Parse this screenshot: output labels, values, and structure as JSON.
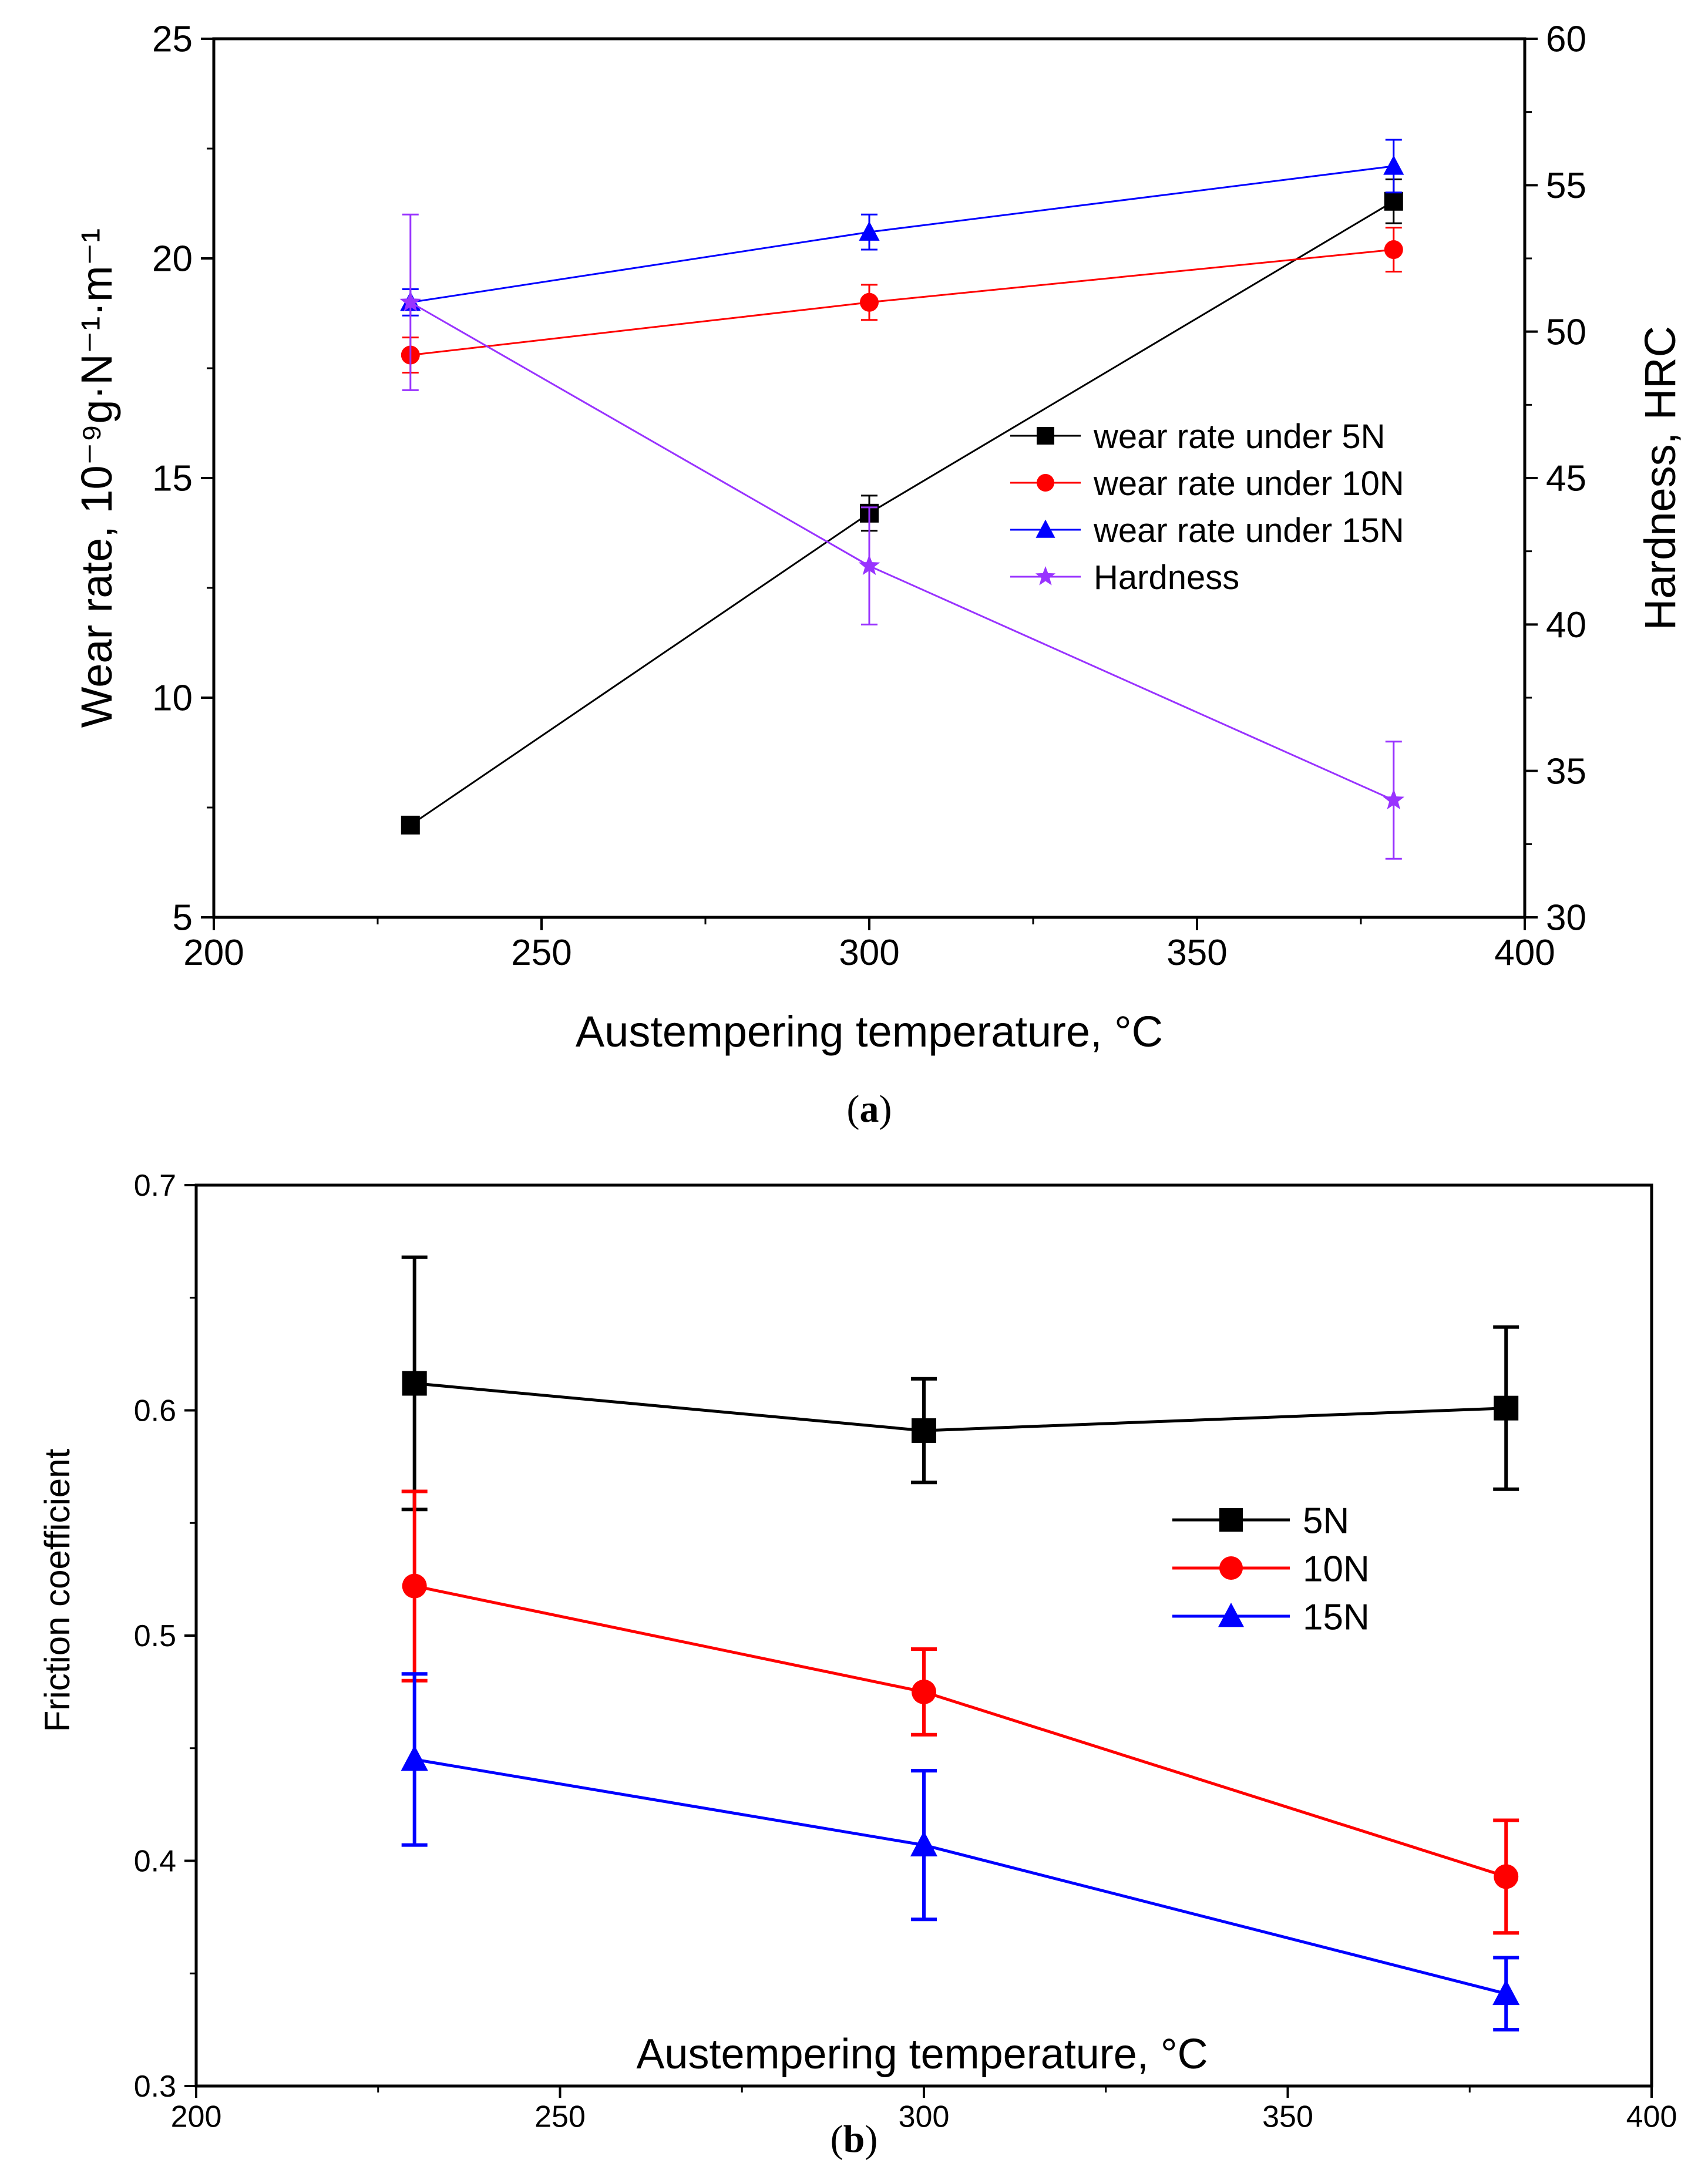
{
  "chart_data": [
    {
      "id": "a",
      "type": "line",
      "caption_label": "a",
      "xlabel": "Austempering temperature, °C",
      "ylabel": "Wear rate, 10⁻⁹g·N⁻¹·m⁻¹",
      "y2label": "Hardness, HRC",
      "xlim": [
        200,
        400
      ],
      "ylim": [
        5,
        25
      ],
      "y2lim": [
        30,
        60
      ],
      "xticks": [
        "200",
        "250",
        "300",
        "350",
        "400"
      ],
      "yticks": [
        "5",
        "10",
        "15",
        "20",
        "25"
      ],
      "y2ticks": [
        "30",
        "35",
        "40",
        "45",
        "50",
        "55",
        "60"
      ],
      "x": [
        230,
        300,
        380
      ],
      "series": [
        {
          "name": "wear rate under 5N",
          "axis": "left",
          "color": "#000000",
          "marker": "square",
          "values": [
            7.1,
            14.2,
            21.3
          ],
          "err": [
            0.15,
            0.4,
            0.5
          ]
        },
        {
          "name": "wear rate under 10N",
          "axis": "left",
          "color": "#ff0000",
          "marker": "circle",
          "values": [
            17.8,
            19.0,
            20.2
          ],
          "err": [
            0.4,
            0.4,
            0.5
          ]
        },
        {
          "name": "wear rate under 15N",
          "axis": "left",
          "color": "#0000ff",
          "marker": "triangle",
          "values": [
            19.0,
            20.6,
            22.1
          ],
          "err": [
            0.3,
            0.4,
            0.6
          ]
        },
        {
          "name": "Hardness",
          "axis": "right",
          "color": "#9933ff",
          "marker": "star",
          "values": [
            51,
            42,
            34
          ],
          "err": [
            3,
            2,
            2
          ]
        }
      ],
      "legend": "center-right"
    },
    {
      "id": "b",
      "type": "line",
      "caption_label": "b",
      "xlabel": "Austempering temperature, °C",
      "ylabel": "Friction coefficient",
      "xlim": [
        200,
        400
      ],
      "ylim": [
        0.3,
        0.7
      ],
      "xticks": [
        "200",
        "250",
        "300",
        "350",
        "400"
      ],
      "yticks": [
        "0.3",
        "0.4",
        "0.5",
        "0.6",
        "0.7"
      ],
      "x": [
        230,
        300,
        380
      ],
      "series": [
        {
          "name": "5N",
          "color": "#000000",
          "marker": "square",
          "values": [
            0.612,
            0.591,
            0.601
          ],
          "err": [
            0.056,
            0.023,
            0.036
          ]
        },
        {
          "name": "10N",
          "color": "#ff0000",
          "marker": "circle",
          "values": [
            0.522,
            0.475,
            0.393
          ],
          "err": [
            0.042,
            0.019,
            0.025
          ]
        },
        {
          "name": "15N",
          "color": "#0000ff",
          "marker": "triangle",
          "values": [
            0.445,
            0.407,
            0.341
          ],
          "err": [
            0.038,
            0.033,
            0.016
          ]
        }
      ],
      "legend": "center-right"
    }
  ]
}
